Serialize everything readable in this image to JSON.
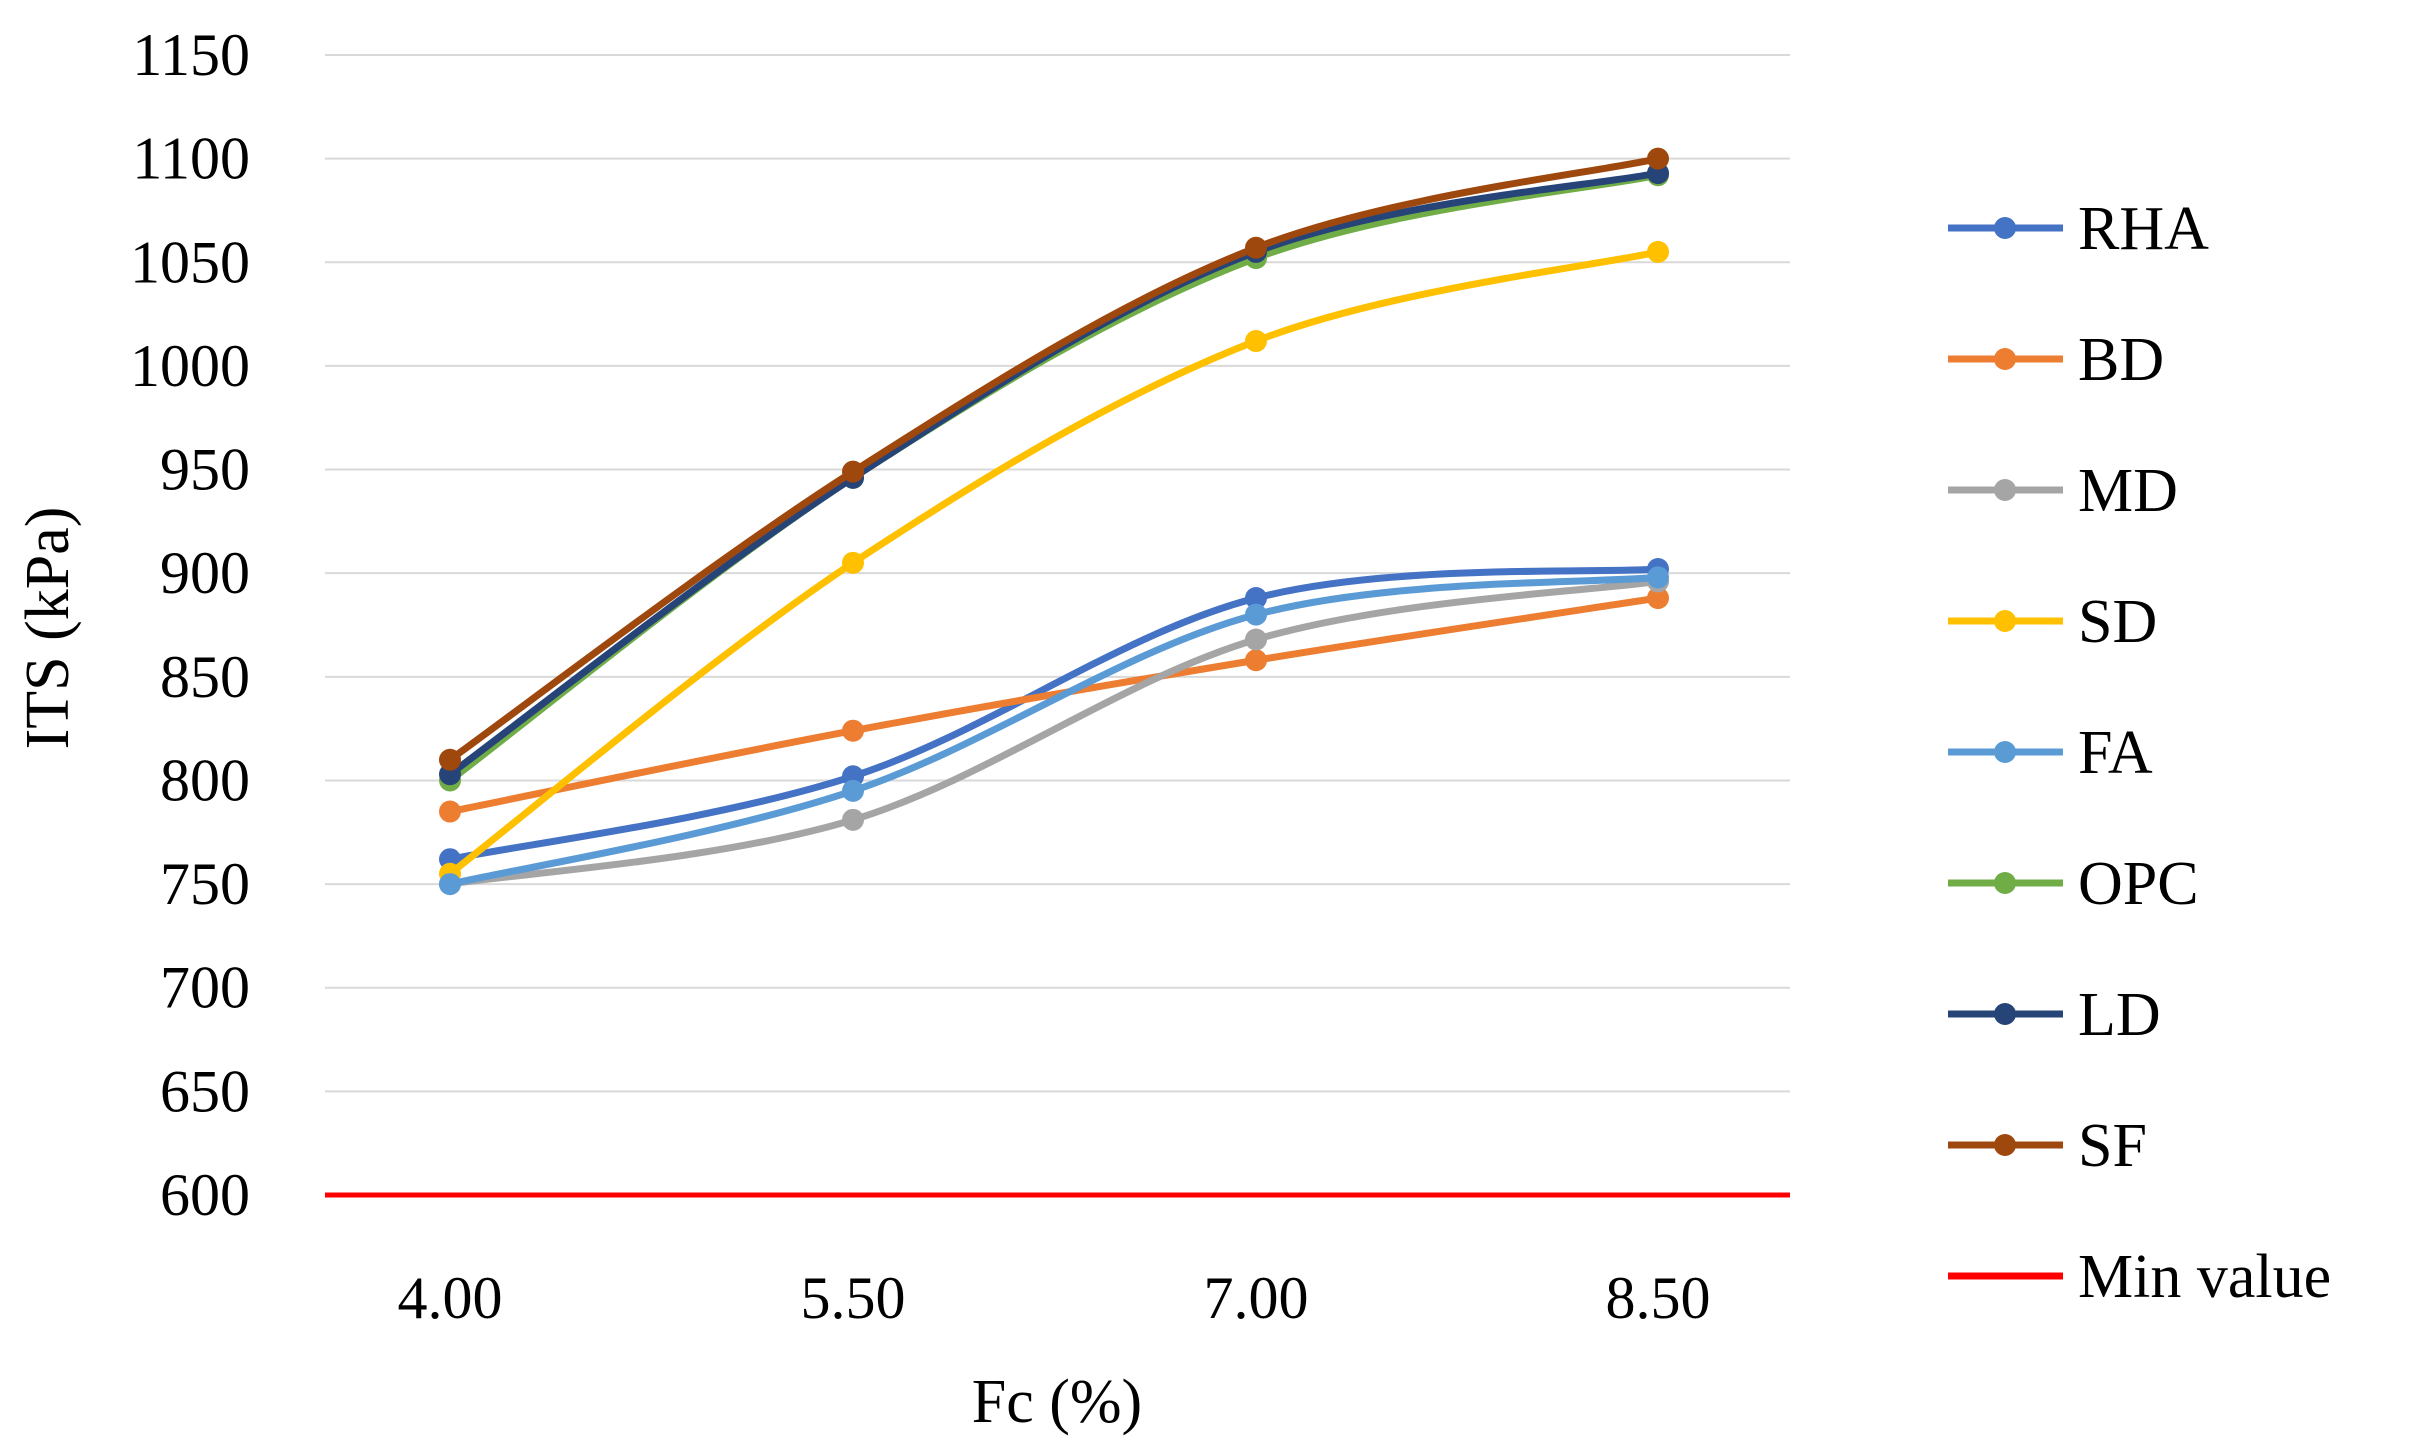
{
  "chart_data": {
    "type": "line",
    "title": "",
    "xlabel": "Fc (%)",
    "ylabel": "ITS (kPa)",
    "categories": [
      "4.00",
      "5.50",
      "7.00",
      "8.50"
    ],
    "ylim": [
      600,
      1150
    ],
    "yticks": [
      600,
      650,
      700,
      750,
      800,
      850,
      900,
      950,
      1000,
      1050,
      1100,
      1150
    ],
    "grid": true,
    "legend": "right",
    "series": [
      {
        "name": "RHA",
        "color": "#4472c4",
        "values": [
          762,
          802,
          888,
          902
        ]
      },
      {
        "name": "BD",
        "color": "#ed7d31",
        "values": [
          785,
          824,
          858,
          888
        ]
      },
      {
        "name": "MD",
        "color": "#a5a5a5",
        "values": [
          750,
          781,
          868,
          896
        ]
      },
      {
        "name": "SD",
        "color": "#ffc000",
        "values": [
          755,
          905,
          1012,
          1055
        ]
      },
      {
        "name": "FA",
        "color": "#5b9bd5",
        "values": [
          750,
          795,
          880,
          898
        ]
      },
      {
        "name": "OPC",
        "color": "#70ad47",
        "values": [
          800,
          946,
          1052,
          1092
        ]
      },
      {
        "name": "LD",
        "color": "#264478",
        "values": [
          803,
          946,
          1055,
          1093
        ]
      },
      {
        "name": "SF",
        "color": "#9e480e",
        "values": [
          810,
          949,
          1057,
          1100
        ]
      }
    ],
    "reference_line": {
      "name": "Min value",
      "value": 600,
      "color": "#ff0000"
    }
  }
}
